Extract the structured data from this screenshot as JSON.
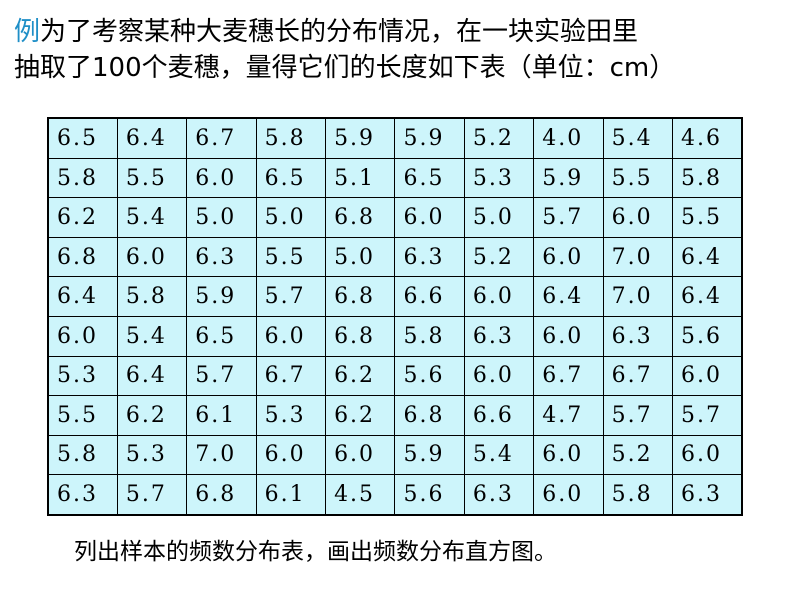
{
  "slide": {
    "title_lead": "例",
    "title_text_line1": "为了考察某种大麦穗长的分布情况，在一块实验田里",
    "title_text_line2": "抽取了100个麦穗，量得它们的长度如下表（单位：cm）",
    "footer_text": "列出样本的频数分布表，画出频数分布直方图。",
    "colors": {
      "lead_accent": "#1f8fc7",
      "table_fill": "#cdf5fb",
      "border": "#000000"
    }
  },
  "table": {
    "rows": [
      [
        "6.5",
        "6.4",
        "6.7",
        "5.8",
        "5.9",
        "5.9",
        "5.2",
        "4.0",
        "5.4",
        "4.6"
      ],
      [
        "5.8",
        "5.5",
        "6.0",
        "6.5",
        "5.1",
        "6.5",
        "5.3",
        "5.9",
        "5.5",
        "5.8"
      ],
      [
        "6.2",
        "5.4",
        "5.0",
        "5.0",
        "6.8",
        "6.0",
        "5.0",
        "5.7",
        "6.0",
        "5.5"
      ],
      [
        "6.8",
        "6.0",
        "6.3",
        "5.5",
        "5.0",
        "6.3",
        "5.2",
        "6.0",
        "7.0",
        "6.4"
      ],
      [
        "6.4",
        "5.8",
        "5.9",
        "5.7",
        "6.8",
        "6.6",
        "6.0",
        "6.4",
        "7.0",
        "6.4"
      ],
      [
        "6.0",
        "5.4",
        "6.5",
        "6.0",
        "6.8",
        "5.8",
        "6.3",
        "6.0",
        "6.3",
        "5.6"
      ],
      [
        "5.3",
        "6.4",
        "5.7",
        "6.7",
        "6.2",
        "5.6",
        "6.0",
        "6.7",
        "6.7",
        "6.0"
      ],
      [
        "5.5",
        "6.2",
        "6.1",
        "5.3",
        "6.2",
        "6.8",
        "6.6",
        "4.7",
        "5.7",
        "5.7"
      ],
      [
        "5.8",
        "5.3",
        "7.0",
        "6.0",
        "6.0",
        "5.9",
        "5.4",
        "6.0",
        "5.2",
        "6.0"
      ],
      [
        "6.3",
        "5.7",
        "6.8",
        "6.1",
        "4.5",
        "5.6",
        "6.3",
        "6.0",
        "5.8",
        "6.3"
      ]
    ]
  }
}
